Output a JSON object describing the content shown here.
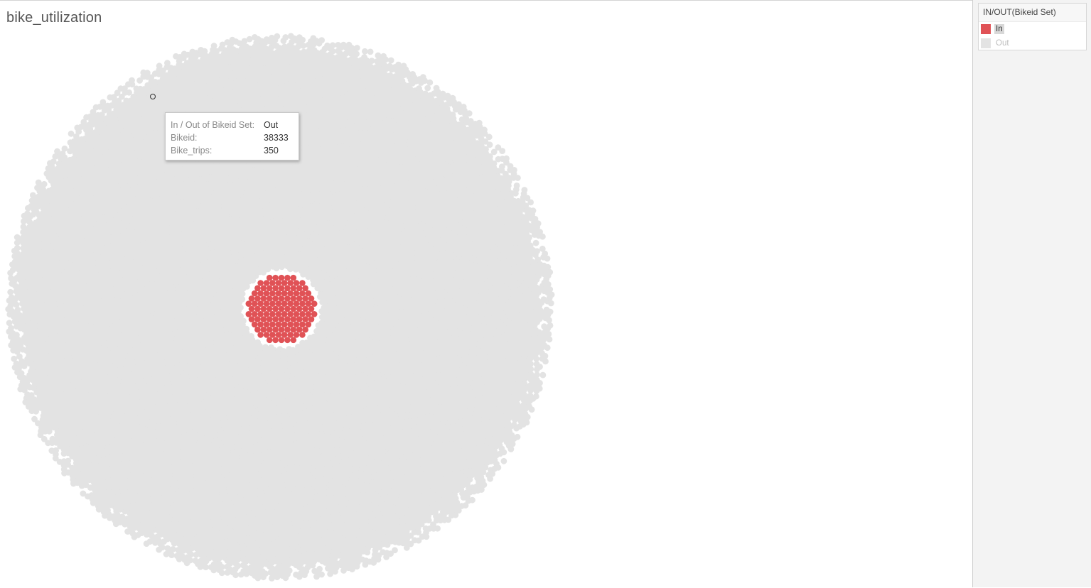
{
  "title": "bike_utilization",
  "chart_data": {
    "type": "packed-bubble",
    "title": "bike_utilization",
    "color_legend_title": "IN/OUT(Bikeid Set)",
    "categories": [
      "In",
      "Out"
    ],
    "colors": {
      "In": "#e05256",
      "Out": "#e3e3e3"
    }
  },
  "tooltip": {
    "rows": [
      {
        "label": "In / Out of Bikeid Set:",
        "value": "Out"
      },
      {
        "label": "Bikeid:",
        "value": "38333"
      },
      {
        "label": "Bike_trips:",
        "value": "350"
      }
    ]
  },
  "legend": {
    "title": "IN/OUT(Bikeid Set)",
    "items": [
      {
        "label": "In",
        "color": "#e05256"
      },
      {
        "label": "Out",
        "color": "#e3e3e3"
      }
    ]
  }
}
